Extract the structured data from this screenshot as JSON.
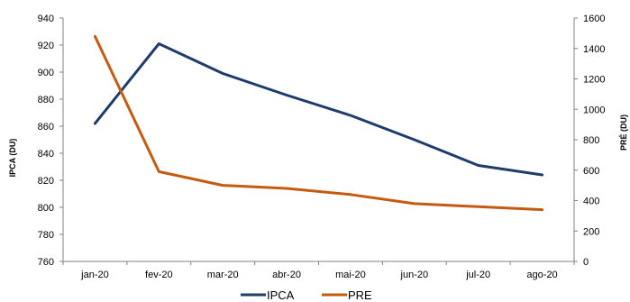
{
  "chart_data": {
    "type": "line",
    "title": "",
    "categories": [
      "jan-20",
      "fev-20",
      "mar-20",
      "abr-20",
      "mai-20",
      "jun-20",
      "jul-20",
      "ago-20"
    ],
    "series": [
      {
        "name": "IPCA",
        "axis": "left",
        "color": "#1f3d6b",
        "values": [
          862,
          921,
          899,
          883,
          868,
          850,
          831,
          824
        ]
      },
      {
        "name": "PRE",
        "axis": "right",
        "color": "#c55a11",
        "values": [
          1480,
          590,
          500,
          480,
          440,
          380,
          360,
          340
        ]
      }
    ],
    "y_left": {
      "label": "IPCA (DU)",
      "lim": [
        760,
        940
      ],
      "ticks": [
        760,
        780,
        800,
        820,
        840,
        860,
        880,
        900,
        920,
        940
      ]
    },
    "y_right": {
      "label": "PRÉ (DU)",
      "lim": [
        0,
        1600
      ],
      "ticks": [
        0,
        200,
        400,
        600,
        800,
        1000,
        1200,
        1400,
        1600
      ]
    },
    "grid": false,
    "legend": "bottom-center"
  }
}
